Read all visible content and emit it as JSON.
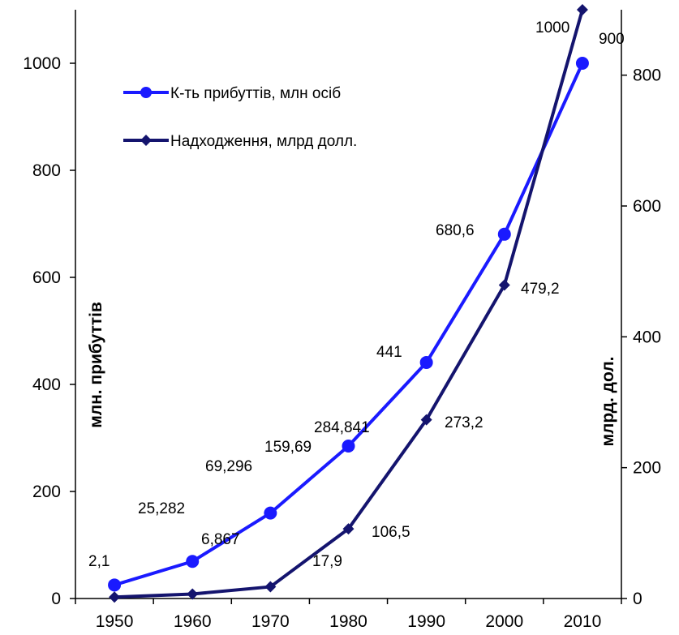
{
  "chart_data": {
    "type": "line",
    "x": [
      1950,
      1960,
      1970,
      1980,
      1990,
      2000,
      2010
    ],
    "ylabel_left": "млн. прибуттів",
    "ylabel_right": "млрд. дол.",
    "yleft_lim": [
      0,
      1100
    ],
    "yleft_ticks": [
      0,
      200,
      400,
      600,
      800,
      1000
    ],
    "yright_lim": [
      0,
      900
    ],
    "yright_ticks": [
      0,
      200,
      400,
      600,
      800
    ],
    "legend_position": "top-left",
    "grid": false,
    "series": [
      {
        "name": "К-ть прибуттів, млн осіб",
        "axis": "left",
        "color": "#1a1aff",
        "marker": "circle",
        "values": [
          25.282,
          69.296,
          159.69,
          284.841,
          441,
          680.6,
          1000
        ],
        "labels": [
          "25,282",
          "69,296",
          "159,69",
          "284,841",
          "441",
          "680,6",
          "1000"
        ]
      },
      {
        "name": "Надходження, млрд долл.",
        "axis": "right",
        "color": "#14146e",
        "marker": "diamond",
        "values": [
          2.1,
          6.867,
          17.9,
          106.5,
          273.2,
          479.2,
          900
        ],
        "labels": [
          "2,1",
          "6,867",
          "17,9",
          "106,5",
          "273,2",
          "479,2",
          "900"
        ]
      }
    ]
  }
}
